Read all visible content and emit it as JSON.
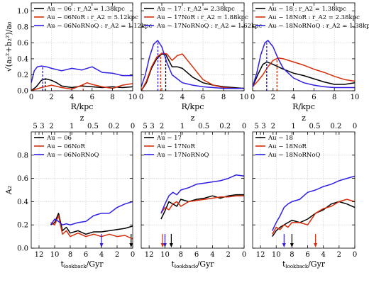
{
  "colors": {
    "black": "#000000",
    "red": "#d62e0a",
    "blue": "#2f1fe6"
  },
  "chart_data": [
    {
      "type": "line",
      "panel": "top-left",
      "xlabel": "R/kpc",
      "ylabel": "√(a₂²+b₂²)/a₀",
      "xlim": [
        0,
        10
      ],
      "ylim": [
        0,
        1.1
      ],
      "xticks": [
        0,
        2,
        4,
        6,
        8,
        10
      ],
      "yticks": [
        0.0,
        0.2,
        0.4,
        0.6,
        0.8,
        1.0
      ],
      "grid": true,
      "legend_position": "top-left",
      "series": [
        {
          "name": "Au − 06 : r_A2 = 1.38kpc",
          "color": "black",
          "marker_x": 1.38,
          "x": [
            0,
            0.5,
            1.0,
            1.4,
            2.0,
            2.5,
            3.0,
            3.5,
            4.0,
            5.0,
            6.0,
            7.0,
            8.0,
            9.0,
            10.0
          ],
          "y": [
            0.0,
            0.05,
            0.13,
            0.15,
            0.13,
            0.1,
            0.06,
            0.05,
            0.04,
            0.06,
            0.05,
            0.04,
            0.05,
            0.04,
            0.05
          ]
        },
        {
          "name": "Au − 06NoR : r_A2 = 5.12kpc",
          "color": "red",
          "marker_x": 5.12,
          "x": [
            0,
            0.5,
            1.0,
            2.0,
            3.0,
            4.0,
            5.0,
            5.5,
            6.0,
            7.0,
            8.0,
            9.0,
            10.0
          ],
          "y": [
            0.0,
            0.02,
            0.04,
            0.07,
            0.04,
            0.02,
            0.07,
            0.1,
            0.08,
            0.05,
            0.03,
            0.07,
            0.09
          ]
        },
        {
          "name": "Au − 06NoRNoQ : r_A2 = 1.12kpc",
          "color": "blue",
          "marker_x": 1.12,
          "x": [
            0,
            0.3,
            0.6,
            1.0,
            1.5,
            2.0,
            3.0,
            4.0,
            5.0,
            6.0,
            7.0,
            8.0,
            9.0,
            10.0
          ],
          "y": [
            0.1,
            0.25,
            0.3,
            0.31,
            0.3,
            0.28,
            0.25,
            0.28,
            0.26,
            0.3,
            0.23,
            0.22,
            0.19,
            0.19
          ]
        }
      ]
    },
    {
      "type": "line",
      "panel": "top-middle",
      "xlabel": "R/kpc",
      "xlim": [
        0,
        10
      ],
      "ylim": [
        0,
        1.1
      ],
      "xticks": [
        0,
        2,
        4,
        6,
        8,
        10
      ],
      "yticks": [
        0.0,
        0.2,
        0.4,
        0.6,
        0.8,
        1.0
      ],
      "grid": true,
      "legend_position": "top-left",
      "series": [
        {
          "name": "Au − 17 : r_A2 = 2.38kpc",
          "color": "black",
          "marker_x": 2.38,
          "x": [
            0,
            0.5,
            1.0,
            1.5,
            2.0,
            2.4,
            3.0,
            3.5,
            4.0,
            5.0,
            6.0,
            7.0,
            8.0,
            9.0,
            10.0
          ],
          "y": [
            0.0,
            0.1,
            0.28,
            0.4,
            0.46,
            0.45,
            0.3,
            0.3,
            0.28,
            0.17,
            0.1,
            0.07,
            0.05,
            0.04,
            0.03
          ]
        },
        {
          "name": "Au − 17NoR : r_A2 = 1.88kpc",
          "color": "red",
          "marker_x": 1.88,
          "x": [
            0,
            0.5,
            1.0,
            1.5,
            2.0,
            2.5,
            3.0,
            3.5,
            4.0,
            5.0,
            6.0,
            7.0,
            8.0,
            9.0,
            10.0
          ],
          "y": [
            0.0,
            0.12,
            0.3,
            0.42,
            0.47,
            0.46,
            0.38,
            0.44,
            0.46,
            0.3,
            0.14,
            0.07,
            0.04,
            0.03,
            0.03
          ]
        },
        {
          "name": "Au − 17NoRNoQ : r_A2 = 1.62kpc",
          "color": "blue",
          "marker_x": 1.62,
          "x": [
            0,
            0.4,
            0.8,
            1.2,
            1.6,
            2.0,
            2.5,
            3.0,
            4.0,
            5.0,
            6.0,
            7.0,
            8.0,
            9.0,
            10.0
          ],
          "y": [
            0.05,
            0.2,
            0.42,
            0.58,
            0.63,
            0.55,
            0.35,
            0.2,
            0.1,
            0.07,
            0.05,
            0.04,
            0.03,
            0.03,
            0.03
          ]
        }
      ]
    },
    {
      "type": "line",
      "panel": "top-right",
      "xlabel": "R/kpc",
      "xlim": [
        0,
        10
      ],
      "ylim": [
        0,
        1.1
      ],
      "xticks": [
        0,
        2,
        4,
        6,
        8,
        10
      ],
      "yticks": [
        0.0,
        0.2,
        0.4,
        0.6,
        0.8,
        1.0
      ],
      "grid": true,
      "legend_position": "top-left",
      "series": [
        {
          "name": "Au − 18 : r_A2 = 1.38kpc",
          "color": "black",
          "marker_x": 1.38,
          "x": [
            0,
            0.5,
            1.0,
            1.4,
            2.0,
            3.0,
            4.0,
            5.0,
            6.0,
            7.0,
            8.0,
            9.0,
            10.0
          ],
          "y": [
            0.05,
            0.2,
            0.33,
            0.36,
            0.33,
            0.27,
            0.22,
            0.19,
            0.15,
            0.11,
            0.08,
            0.08,
            0.1
          ]
        },
        {
          "name": "Au − 18NoR : r_A2 = 2.38kpc",
          "color": "red",
          "marker_x": 2.38,
          "x": [
            0,
            0.5,
            1.0,
            1.5,
            2.0,
            2.5,
            3.0,
            4.0,
            5.0,
            6.0,
            7.0,
            8.0,
            9.0,
            10.0
          ],
          "y": [
            0.05,
            0.12,
            0.2,
            0.3,
            0.38,
            0.41,
            0.4,
            0.36,
            0.32,
            0.27,
            0.23,
            0.18,
            0.14,
            0.12
          ]
        },
        {
          "name": "Au − 18NoRNoQ : r_A2 = 1.38kpc",
          "color": "blue",
          "marker_x": 1.38,
          "x": [
            0,
            0.4,
            0.8,
            1.2,
            1.5,
            2.0,
            2.5,
            3.0,
            4.0,
            5.0,
            6.0,
            7.0,
            8.0,
            9.0,
            10.0
          ],
          "y": [
            0.05,
            0.22,
            0.45,
            0.6,
            0.63,
            0.55,
            0.4,
            0.28,
            0.16,
            0.1,
            0.07,
            0.05,
            0.04,
            0.04,
            0.04
          ]
        }
      ]
    },
    {
      "type": "line",
      "panel": "bottom-left",
      "xlabel": "t_lookback/Gyr",
      "ylabel": "A₂",
      "top_axis_label": "z",
      "top_ticks_z": [
        "5",
        "3",
        "2",
        "1",
        "0.5",
        "0.2",
        "0"
      ],
      "top_ticks_t": [
        12.5,
        11.6,
        10.4,
        7.8,
        5.1,
        2.4,
        0
      ],
      "xlim": [
        13,
        0
      ],
      "ylim": [
        0,
        1.0
      ],
      "xticks": [
        12,
        10,
        8,
        6,
        4,
        2,
        0
      ],
      "yticks": [
        0.0,
        0.2,
        0.4,
        0.6,
        0.8
      ],
      "grid": true,
      "legend_position": "top-left",
      "series": [
        {
          "name": "Au − 06",
          "color": "black",
          "arrow_x": 0.2,
          "x": [
            10.5,
            10.0,
            9.5,
            9.0,
            8.5,
            8.0,
            7.0,
            6.0,
            5.0,
            4.0,
            3.0,
            2.0,
            1.0,
            0.0
          ],
          "y": [
            0.2,
            0.22,
            0.3,
            0.15,
            0.18,
            0.13,
            0.15,
            0.12,
            0.14,
            0.14,
            0.15,
            0.16,
            0.17,
            0.19
          ]
        },
        {
          "name": "Au − 06NoR",
          "color": "red",
          "arrow_x": null,
          "x": [
            10.5,
            10.0,
            9.5,
            9.0,
            8.5,
            8.0,
            7.0,
            6.0,
            5.0,
            4.0,
            3.0,
            2.0,
            1.0,
            0.0
          ],
          "y": [
            0.22,
            0.2,
            0.28,
            0.12,
            0.15,
            0.1,
            0.13,
            0.1,
            0.12,
            0.1,
            0.12,
            0.1,
            0.11,
            0.08
          ]
        },
        {
          "name": "Au − 06NoRNoQ",
          "color": "blue",
          "arrow_x": 4.0,
          "x": [
            10.5,
            10.0,
            9.5,
            9.0,
            8.5,
            8.0,
            7.0,
            6.0,
            5.0,
            4.0,
            3.0,
            2.0,
            1.0,
            0.0
          ],
          "y": [
            0.2,
            0.25,
            0.23,
            0.2,
            0.21,
            0.2,
            0.22,
            0.23,
            0.28,
            0.3,
            0.3,
            0.35,
            0.38,
            0.4
          ]
        }
      ]
    },
    {
      "type": "line",
      "panel": "bottom-middle",
      "xlabel": "t_lookback/Gyr",
      "top_axis_label": "z",
      "top_ticks_z": [
        "5",
        "3",
        "2",
        "1",
        "0.5",
        "0.2",
        "0"
      ],
      "top_ticks_t": [
        12.5,
        11.6,
        10.4,
        7.8,
        5.1,
        2.4,
        0
      ],
      "xlim": [
        13,
        0
      ],
      "ylim": [
        0,
        1.0
      ],
      "xticks": [
        12,
        10,
        8,
        6,
        4,
        2,
        0
      ],
      "yticks": [
        0.0,
        0.2,
        0.4,
        0.6,
        0.8
      ],
      "grid": true,
      "legend_position": "top-left",
      "series": [
        {
          "name": "Au − 17",
          "color": "black",
          "arrow_x": 9.2,
          "x": [
            10.5,
            10.0,
            9.5,
            9.0,
            8.5,
            8.0,
            7.0,
            6.0,
            5.0,
            4.0,
            3.0,
            2.0,
            1.0,
            0.0
          ],
          "y": [
            0.25,
            0.32,
            0.4,
            0.38,
            0.36,
            0.42,
            0.4,
            0.42,
            0.43,
            0.45,
            0.43,
            0.45,
            0.46,
            0.46
          ]
        },
        {
          "name": "Au − 17NoR",
          "color": "red",
          "arrow_x": 10.3,
          "x": [
            10.5,
            10.0,
            9.5,
            9.0,
            8.5,
            8.0,
            7.0,
            6.0,
            5.0,
            4.0,
            3.0,
            2.0,
            1.0,
            0.0
          ],
          "y": [
            0.3,
            0.35,
            0.33,
            0.38,
            0.4,
            0.36,
            0.4,
            0.41,
            0.42,
            0.43,
            0.44,
            0.44,
            0.45,
            0.45
          ]
        },
        {
          "name": "Au − 17NoRNoQ",
          "color": "blue",
          "arrow_x": 10.0,
          "x": [
            10.5,
            10.0,
            9.5,
            9.0,
            8.5,
            8.0,
            7.0,
            6.0,
            5.0,
            4.0,
            3.0,
            2.0,
            1.0,
            0.0
          ],
          "y": [
            0.3,
            0.38,
            0.45,
            0.48,
            0.46,
            0.5,
            0.52,
            0.55,
            0.56,
            0.57,
            0.58,
            0.6,
            0.63,
            0.62
          ]
        }
      ]
    },
    {
      "type": "line",
      "panel": "bottom-right",
      "xlabel": "t_lookback/Gyr",
      "top_axis_label": "z",
      "top_ticks_z": [
        "5",
        "3",
        "2",
        "1",
        "0.5",
        "0.2",
        "0"
      ],
      "top_ticks_t": [
        12.5,
        11.6,
        10.4,
        7.8,
        5.1,
        2.4,
        0
      ],
      "xlim": [
        13,
        0
      ],
      "ylim": [
        0,
        1.0
      ],
      "xticks": [
        12,
        10,
        8,
        6,
        4,
        2,
        0
      ],
      "yticks": [
        0.0,
        0.2,
        0.4,
        0.6,
        0.8
      ],
      "grid": true,
      "legend_position": "top-left",
      "series": [
        {
          "name": "Au − 18",
          "color": "black",
          "arrow_x": 8.0,
          "x": [
            10.5,
            10.0,
            9.5,
            9.0,
            8.5,
            8.0,
            7.0,
            6.0,
            5.0,
            4.0,
            3.0,
            2.0,
            1.0,
            0.0
          ],
          "y": [
            0.1,
            0.15,
            0.18,
            0.2,
            0.22,
            0.24,
            0.22,
            0.25,
            0.3,
            0.33,
            0.38,
            0.4,
            0.38,
            0.35
          ]
        },
        {
          "name": "Au − 18NoR",
          "color": "red",
          "arrow_x": 5.0,
          "x": [
            10.5,
            10.0,
            9.5,
            9.0,
            8.5,
            8.0,
            7.0,
            6.0,
            5.0,
            4.0,
            3.0,
            2.0,
            1.0,
            0.0
          ],
          "y": [
            0.12,
            0.18,
            0.16,
            0.2,
            0.18,
            0.22,
            0.22,
            0.2,
            0.3,
            0.34,
            0.36,
            0.4,
            0.42,
            0.4
          ]
        },
        {
          "name": "Au − 18NoRNoQ",
          "color": "blue",
          "arrow_x": 9.0,
          "x": [
            10.5,
            10.0,
            9.5,
            9.0,
            8.5,
            8.0,
            7.0,
            6.0,
            5.0,
            4.0,
            3.0,
            2.0,
            1.0,
            0.0
          ],
          "y": [
            0.15,
            0.22,
            0.28,
            0.35,
            0.38,
            0.4,
            0.42,
            0.48,
            0.5,
            0.53,
            0.55,
            0.58,
            0.6,
            0.62
          ]
        }
      ]
    }
  ]
}
